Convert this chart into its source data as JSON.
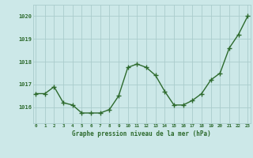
{
  "x": [
    0,
    1,
    2,
    3,
    4,
    5,
    6,
    7,
    8,
    9,
    10,
    11,
    12,
    13,
    14,
    15,
    16,
    17,
    18,
    19,
    20,
    21,
    22,
    23
  ],
  "y": [
    1016.6,
    1016.6,
    1016.9,
    1016.2,
    1016.1,
    1015.75,
    1015.75,
    1015.75,
    1015.9,
    1016.5,
    1017.75,
    1017.9,
    1017.75,
    1017.4,
    1016.7,
    1016.1,
    1016.1,
    1016.3,
    1016.6,
    1017.2,
    1017.5,
    1018.6,
    1019.2,
    1020.0
  ],
  "line_color": "#2d6a2d",
  "marker_color": "#2d6a2d",
  "bg_color": "#cce8e8",
  "grid_color": "#aacccc",
  "tick_color": "#2d6a2d",
  "label_color": "#2d6a2d",
  "xlabel": "Graphe pression niveau de la mer (hPa)",
  "ylim": [
    1015.3,
    1020.5
  ],
  "yticks": [
    1016,
    1017,
    1018,
    1019,
    1020
  ],
  "xticks": [
    0,
    1,
    2,
    3,
    4,
    5,
    6,
    7,
    8,
    9,
    10,
    11,
    12,
    13,
    14,
    15,
    16,
    17,
    18,
    19,
    20,
    21,
    22,
    23
  ],
  "marker_size": 4,
  "line_width": 1.0
}
